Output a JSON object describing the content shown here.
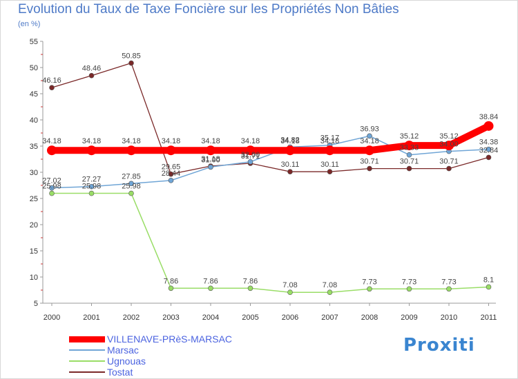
{
  "title": "Evolution du Taux de Taxe Foncière sur les Propriétés Non Bâties",
  "subtitle": "(en %)",
  "logo": "Proxiti",
  "chart_data": {
    "type": "line",
    "title": "Evolution du Taux de Taxe Foncière sur les Propriétés Non Bâties",
    "ylabel": "(en %)",
    "xlabel": "",
    "ylim": [
      5,
      55
    ],
    "yticks": [
      5,
      10,
      15,
      20,
      25,
      30,
      35,
      40,
      45,
      50,
      55
    ],
    "categories": [
      "2000",
      "2001",
      "2002",
      "2003",
      "2004",
      "2005",
      "2006",
      "2007",
      "2008",
      "2009",
      "2010",
      "2011"
    ],
    "grid": false,
    "legend": "bottom-left",
    "series": [
      {
        "name": "VILLENAVE-PRèS-MARSAC",
        "color": "#ff0000",
        "values": [
          34.18,
          34.18,
          34.18,
          34.18,
          34.18,
          34.18,
          34.18,
          34.18,
          34.18,
          35.12,
          35.12,
          38.84
        ],
        "labels": [
          "34.18",
          "34.18",
          "34.18",
          "34.18",
          "34.18",
          "34.18",
          "34.18",
          "34.18",
          "34.18",
          "35.12",
          "35.12",
          "38.84"
        ]
      },
      {
        "name": "Marsac",
        "color": "#6fa5d6",
        "values": [
          27.02,
          27.27,
          27.85,
          28.44,
          31.0,
          32.0,
          34.82,
          35.17,
          36.93,
          33.33,
          34.0,
          34.38
        ],
        "labels": [
          "27.02",
          "27.27",
          "27.85",
          "28.44",
          "31.00",
          "32.00",
          "34.82",
          "35.17",
          "36.93",
          "33.33",
          "34.00",
          "34.38"
        ]
      },
      {
        "name": "Ugnouas",
        "color": "#99dd66",
        "values": [
          25.98,
          25.98,
          25.98,
          7.86,
          7.86,
          7.86,
          7.08,
          7.08,
          7.73,
          7.73,
          7.73,
          8.1
        ],
        "labels": [
          "25.98",
          "25.98",
          "25.98",
          "7.86",
          "7.86",
          "7.86",
          "7.08",
          "7.08",
          "7.73",
          "7.73",
          "7.73",
          "8.1"
        ]
      },
      {
        "name": "Tostat",
        "color": "#7a2828",
        "values": [
          46.16,
          48.46,
          50.85,
          29.65,
          31.18,
          31.71,
          30.11,
          30.11,
          30.71,
          30.71,
          30.71,
          32.84
        ],
        "labels": [
          "46.16",
          "48.46",
          "50.85",
          "29.65",
          "31.18",
          "31.71",
          "30.11",
          "30.11",
          "30.71",
          "30.71",
          "30.71",
          "32.84"
        ]
      }
    ]
  }
}
